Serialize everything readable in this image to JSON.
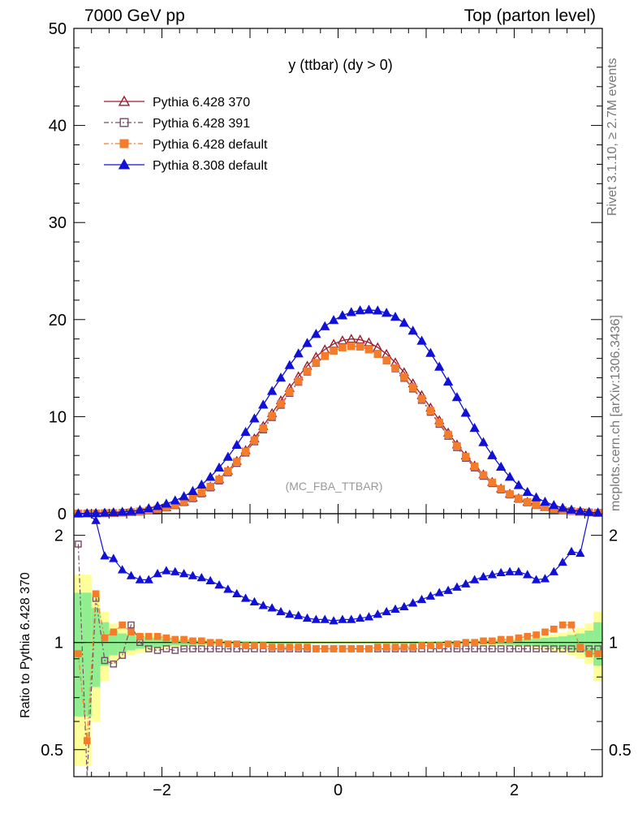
{
  "header": {
    "left": "7000 GeV pp",
    "right": "Top (parton level)"
  },
  "side_labels": {
    "rivet": "Rivet 3.1.10, ≥ 2.7M events",
    "mcplots": "mcplots.cern.ch [arXiv:1306.3436]"
  },
  "watermark": "(MC_FBA_TTBAR)",
  "chart_data": [
    {
      "panel": "main",
      "type": "line",
      "title": "y (ttbar) (dy > 0)",
      "xlim": [
        -3.0,
        3.0
      ],
      "ylim": [
        0,
        50
      ],
      "yticks": [
        0,
        10,
        20,
        30,
        40,
        50
      ],
      "xticks": [
        -2,
        0,
        2
      ],
      "legend_position": "top-left",
      "bins": 60,
      "x_start": -2.95,
      "x_step": 0.1,
      "series": [
        {
          "name": "Pythia 6.428 370",
          "color": "#9b1c2e",
          "marker": "open-triangle",
          "line": "solid",
          "values": [
            0.01,
            0.02,
            0.03,
            0.05,
            0.07,
            0.1,
            0.15,
            0.22,
            0.32,
            0.46,
            0.65,
            0.9,
            1.23,
            1.65,
            2.17,
            2.8,
            3.55,
            4.43,
            5.43,
            6.54,
            7.75,
            9.03,
            10.35,
            11.67,
            12.95,
            14.15,
            15.23,
            16.16,
            16.92,
            17.49,
            17.85,
            18.0,
            17.93,
            17.64,
            17.14,
            16.45,
            15.58,
            14.56,
            13.42,
            12.2,
            10.92,
            9.62,
            8.34,
            7.12,
            5.98,
            4.95,
            4.04,
            3.26,
            2.59,
            2.04,
            1.58,
            1.21,
            0.92,
            0.69,
            0.51,
            0.37,
            0.27,
            0.19,
            0.13,
            0.09
          ]
        },
        {
          "name": "Pythia 6.428 391",
          "color": "#7a4a6a",
          "marker": "open-square",
          "line": "dashdot",
          "values": [
            0.01,
            0.02,
            0.03,
            0.05,
            0.07,
            0.1,
            0.15,
            0.22,
            0.31,
            0.44,
            0.62,
            0.86,
            1.18,
            1.58,
            2.08,
            2.69,
            3.41,
            4.25,
            5.21,
            6.28,
            7.44,
            8.67,
            9.94,
            11.2,
            12.43,
            13.58,
            14.62,
            15.52,
            16.24,
            16.79,
            17.14,
            17.28,
            17.22,
            16.93,
            16.45,
            15.79,
            14.96,
            13.98,
            12.88,
            11.71,
            10.48,
            9.24,
            8.01,
            6.84,
            5.74,
            4.75,
            3.88,
            3.13,
            2.49,
            1.96,
            1.52,
            1.16,
            0.88,
            0.66,
            0.49,
            0.36,
            0.26,
            0.18,
            0.13,
            0.09
          ]
        },
        {
          "name": "Pythia 6.428 default",
          "color": "#f47c2a",
          "marker": "filled-square",
          "line": "dashdot",
          "values": [
            0.01,
            0.02,
            0.03,
            0.05,
            0.07,
            0.11,
            0.16,
            0.24,
            0.34,
            0.48,
            0.67,
            0.92,
            1.25,
            1.67,
            2.18,
            2.8,
            3.53,
            4.39,
            5.35,
            6.42,
            7.58,
            8.8,
            10.06,
            11.31,
            12.52,
            13.65,
            14.67,
            15.55,
            16.26,
            16.79,
            17.12,
            17.26,
            17.19,
            16.91,
            16.45,
            15.81,
            15.01,
            14.06,
            12.98,
            11.83,
            10.61,
            9.38,
            8.15,
            6.98,
            5.87,
            4.87,
            3.98,
            3.22,
            2.56,
            2.02,
            1.57,
            1.2,
            0.91,
            0.68,
            0.5,
            0.37,
            0.27,
            0.19,
            0.13,
            0.09
          ]
        },
        {
          "name": "Pythia 8.308 default",
          "color": "#1010d8",
          "marker": "filled-triangle",
          "line": "solid",
          "values": [
            0.02,
            0.04,
            0.06,
            0.09,
            0.13,
            0.18,
            0.25,
            0.38,
            0.55,
            0.78,
            1.02,
            1.35,
            1.78,
            2.32,
            2.98,
            3.78,
            4.74,
            5.85,
            7.08,
            8.41,
            9.8,
            11.22,
            12.63,
            14.0,
            15.3,
            16.5,
            17.57,
            18.51,
            19.3,
            19.94,
            20.42,
            20.75,
            20.94,
            21.0,
            20.92,
            20.68,
            20.27,
            19.66,
            18.84,
            17.8,
            16.55,
            15.13,
            13.59,
            11.99,
            10.38,
            8.82,
            7.35,
            6.01,
            4.82,
            3.79,
            2.93,
            2.23,
            1.67,
            1.22,
            0.87,
            0.6,
            0.4,
            0.26,
            0.16,
            0.1
          ]
        }
      ]
    },
    {
      "panel": "ratio",
      "type": "line",
      "ylabel": "Ratio to Pythia 6.428 370",
      "xlim": [
        -3.0,
        3.0
      ],
      "ylim": [
        0.42,
        2.3
      ],
      "yticks": [
        0.5,
        1,
        2
      ],
      "xticks": [
        -2,
        0,
        2
      ],
      "bins": 60,
      "x_start": -2.95,
      "x_step": 0.1,
      "band_green": [
        0.38,
        0.38,
        0.25,
        0.14,
        0.08,
        0.06,
        0.05,
        0.04,
        0.035,
        0.03,
        0.025,
        0.02,
        0.018,
        0.016,
        0.014,
        0.012,
        0.011,
        0.01,
        0.009,
        0.008,
        0.007,
        0.007,
        0.006,
        0.006,
        0.006,
        0.005,
        0.005,
        0.005,
        0.005,
        0.005,
        0.005,
        0.005,
        0.005,
        0.005,
        0.005,
        0.005,
        0.005,
        0.005,
        0.006,
        0.006,
        0.006,
        0.007,
        0.007,
        0.008,
        0.009,
        0.01,
        0.011,
        0.012,
        0.014,
        0.016,
        0.018,
        0.02,
        0.025,
        0.03,
        0.035,
        0.04,
        0.05,
        0.06,
        0.08,
        0.14
      ],
      "band_yellow": [
        0.55,
        0.55,
        0.4,
        0.22,
        0.13,
        0.1,
        0.08,
        0.065,
        0.055,
        0.045,
        0.038,
        0.032,
        0.028,
        0.024,
        0.021,
        0.019,
        0.017,
        0.015,
        0.014,
        0.013,
        0.012,
        0.011,
        0.01,
        0.01,
        0.009,
        0.009,
        0.009,
        0.009,
        0.009,
        0.009,
        0.009,
        0.009,
        0.009,
        0.009,
        0.009,
        0.009,
        0.009,
        0.009,
        0.009,
        0.01,
        0.01,
        0.011,
        0.012,
        0.013,
        0.014,
        0.015,
        0.017,
        0.019,
        0.021,
        0.024,
        0.028,
        0.032,
        0.038,
        0.045,
        0.055,
        0.065,
        0.08,
        0.1,
        0.13,
        0.22
      ],
      "series": [
        {
          "name": "Pythia 6.428 391",
          "color": "#7a4a6a",
          "marker": "open-square",
          "values": [
            1.89,
            0.22,
            1.33,
            0.89,
            0.87,
            0.92,
            1.12,
            1.0,
            0.96,
            0.95,
            0.96,
            0.95,
            0.96,
            0.96,
            0.96,
            0.96,
            0.96,
            0.96,
            0.96,
            0.96,
            0.96,
            0.96,
            0.96,
            0.96,
            0.96,
            0.96,
            0.96,
            0.96,
            0.96,
            0.96,
            0.96,
            0.96,
            0.96,
            0.96,
            0.96,
            0.96,
            0.96,
            0.96,
            0.96,
            0.96,
            0.96,
            0.96,
            0.96,
            0.96,
            0.96,
            0.96,
            0.96,
            0.96,
            0.96,
            0.96,
            0.96,
            0.96,
            0.96,
            0.96,
            0.96,
            0.96,
            0.96,
            0.96,
            0.96,
            0.96
          ]
        },
        {
          "name": "Pythia 6.428 default",
          "color": "#f47c2a",
          "marker": "filled-square",
          "values": [
            0.93,
            0.53,
            1.37,
            1.03,
            1.07,
            1.12,
            1.07,
            1.04,
            1.04,
            1.04,
            1.03,
            1.02,
            1.02,
            1.01,
            1.01,
            1.0,
            1.0,
            0.99,
            0.99,
            0.98,
            0.98,
            0.98,
            0.97,
            0.97,
            0.97,
            0.97,
            0.97,
            0.96,
            0.96,
            0.96,
            0.96,
            0.96,
            0.96,
            0.96,
            0.97,
            0.97,
            0.97,
            0.97,
            0.97,
            0.98,
            0.98,
            0.98,
            0.99,
            0.99,
            1.0,
            1.0,
            1.01,
            1.01,
            1.02,
            1.02,
            1.03,
            1.04,
            1.05,
            1.07,
            1.09,
            1.12,
            1.12,
            0.97,
            0.93,
            0.93
          ]
        },
        {
          "name": "Pythia 8.308 default",
          "color": "#1010d8",
          "marker": "filled-triangle",
          "values": [
            2.3,
            2.3,
            2.2,
            1.75,
            1.72,
            1.6,
            1.54,
            1.5,
            1.5,
            1.56,
            1.59,
            1.58,
            1.56,
            1.54,
            1.52,
            1.49,
            1.45,
            1.41,
            1.37,
            1.33,
            1.3,
            1.27,
            1.25,
            1.22,
            1.2,
            1.19,
            1.17,
            1.16,
            1.16,
            1.15,
            1.16,
            1.16,
            1.17,
            1.18,
            1.2,
            1.22,
            1.24,
            1.26,
            1.29,
            1.32,
            1.35,
            1.38,
            1.4,
            1.43,
            1.46,
            1.5,
            1.53,
            1.55,
            1.57,
            1.58,
            1.58,
            1.55,
            1.5,
            1.51,
            1.58,
            1.68,
            1.8,
            1.78,
            2.3,
            2.3
          ]
        }
      ]
    }
  ]
}
